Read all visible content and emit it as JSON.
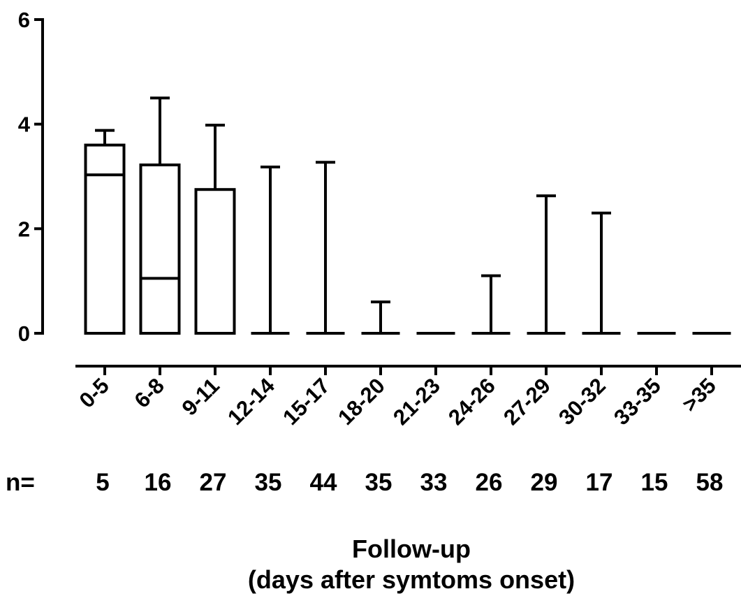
{
  "chart_data": {
    "type": "box",
    "title": "",
    "ylabel": "",
    "xlabel_lines": [
      "Follow-up",
      "(days after symtoms onset)"
    ],
    "ylim": [
      0,
      6
    ],
    "yticks": [
      0,
      2,
      4,
      6
    ],
    "n_prefix": "n=",
    "categories": [
      "0-5",
      "6-8",
      "9-11",
      "12-14",
      "15-17",
      "18-20",
      "21-23",
      "24-26",
      "27-29",
      "30-32",
      "33-35",
      ">35"
    ],
    "n": [
      "5",
      "16",
      "27",
      "35",
      "44",
      "35",
      "33",
      "26",
      "29",
      "17",
      "15",
      "58"
    ],
    "boxes": [
      {
        "min": 0,
        "q1": 0,
        "median": 3.03,
        "q3": 3.6,
        "max": 3.88
      },
      {
        "min": 0,
        "q1": 0,
        "median": 1.05,
        "q3": 3.22,
        "max": 4.5
      },
      {
        "min": 0,
        "q1": 0,
        "median": 0,
        "q3": 2.75,
        "max": 3.98
      },
      {
        "min": 0,
        "q1": 0,
        "median": 0,
        "q3": 0,
        "max": 3.18
      },
      {
        "min": 0,
        "q1": 0,
        "median": 0,
        "q3": 0,
        "max": 3.27
      },
      {
        "min": 0,
        "q1": 0,
        "median": 0,
        "q3": 0,
        "max": 0.6
      },
      {
        "min": 0,
        "q1": 0,
        "median": 0,
        "q3": 0,
        "max": 0
      },
      {
        "min": 0,
        "q1": 0,
        "median": 0,
        "q3": 0,
        "max": 1.1
      },
      {
        "min": 0,
        "q1": 0,
        "median": 0,
        "q3": 0,
        "max": 2.63
      },
      {
        "min": 0,
        "q1": 0,
        "median": 0,
        "q3": 0,
        "max": 2.3
      },
      {
        "min": 0,
        "q1": 0,
        "median": 0,
        "q3": 0,
        "max": 0
      },
      {
        "min": 0,
        "q1": 0,
        "median": 0,
        "q3": 0,
        "max": 0
      }
    ]
  }
}
